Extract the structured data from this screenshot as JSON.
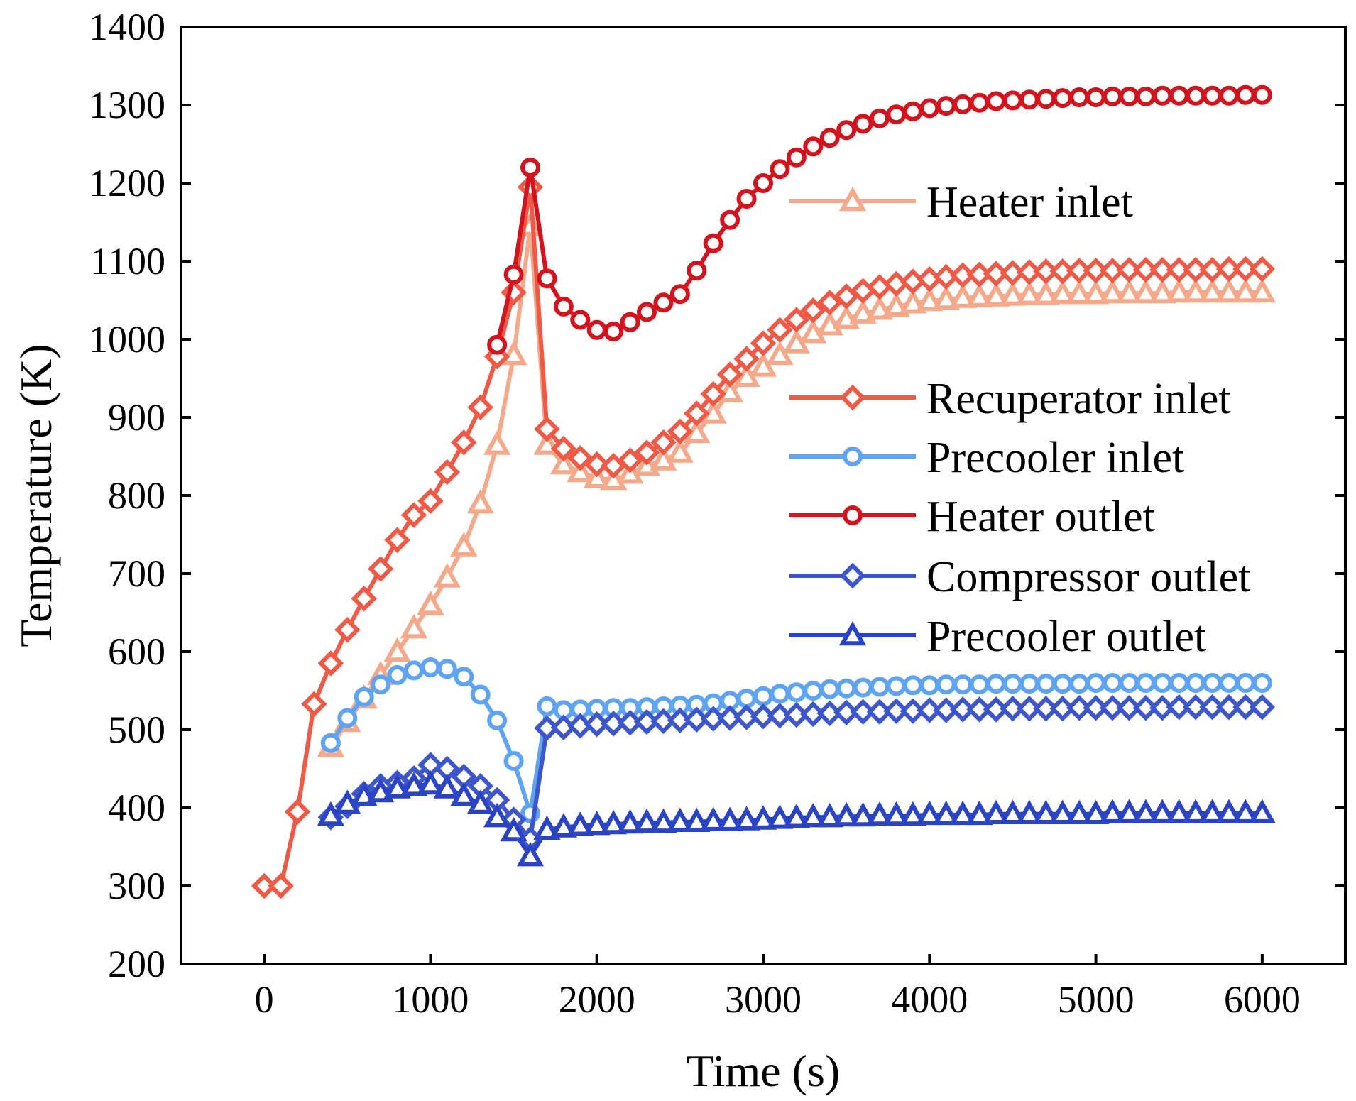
{
  "chart_data": {
    "type": "line",
    "title": "",
    "xlabel": "Time (s)",
    "ylabel": "Temperature (K)",
    "xlim": [
      -500,
      6500
    ],
    "ylim": [
      200,
      1400
    ],
    "xticks": [
      0,
      1000,
      2000,
      3000,
      4000,
      5000,
      6000
    ],
    "yticks": [
      200,
      300,
      400,
      500,
      600,
      700,
      800,
      900,
      1000,
      1100,
      1200,
      1300,
      1400
    ],
    "grid": false,
    "legend_position": "top-right",
    "series": [
      {
        "name": "Heater inlet",
        "color": "#f5a98b",
        "marker": "triangle",
        "x": [
          400,
          500,
          600,
          700,
          800,
          900,
          1000,
          1100,
          1200,
          1300,
          1400,
          1500,
          1600,
          1700,
          1800,
          1900,
          2000,
          2100,
          2200,
          2300,
          2400,
          2500,
          2600,
          2700,
          2800,
          2900,
          3000,
          3100,
          3200,
          3300,
          3400,
          3500,
          3600,
          3700,
          3800,
          3900,
          4000,
          4100,
          4200,
          4300,
          4400,
          4500,
          4600,
          4700,
          4800,
          4900,
          5000,
          5100,
          5200,
          5300,
          5400,
          5500,
          5600,
          5700,
          5800,
          5900,
          6000
        ],
        "y": [
          478,
          510,
          540,
          570,
          600,
          630,
          660,
          695,
          735,
          790,
          865,
          980,
          1145,
          865,
          840,
          830,
          822,
          820,
          828,
          838,
          845,
          855,
          880,
          905,
          932,
          952,
          965,
          980,
          995,
          1008,
          1018,
          1026,
          1033,
          1038,
          1042,
          1046,
          1049,
          1051,
          1053,
          1054,
          1055,
          1056,
          1057,
          1057,
          1058,
          1058,
          1058,
          1059,
          1059,
          1059,
          1059,
          1060,
          1060,
          1060,
          1060,
          1060,
          1060
        ]
      },
      {
        "name": "Recuperator inlet",
        "color": "#ef5a47",
        "marker": "diamond",
        "x": [
          0,
          100,
          200,
          300,
          400,
          500,
          600,
          700,
          800,
          900,
          1000,
          1100,
          1200,
          1300,
          1400,
          1500,
          1600,
          1700,
          1800,
          1900,
          2000,
          2100,
          2200,
          2300,
          2400,
          2500,
          2600,
          2700,
          2800,
          2900,
          3000,
          3100,
          3200,
          3300,
          3400,
          3500,
          3600,
          3700,
          3800,
          3900,
          4000,
          4100,
          4200,
          4300,
          4400,
          4500,
          4600,
          4700,
          4800,
          4900,
          5000,
          5100,
          5200,
          5300,
          5400,
          5500,
          5600,
          5700,
          5800,
          5900,
          6000
        ],
        "y": [
          300,
          300,
          395,
          533,
          585,
          628,
          668,
          706,
          743,
          775,
          793,
          830,
          868,
          913,
          978,
          1060,
          1195,
          885,
          860,
          848,
          840,
          838,
          845,
          855,
          868,
          882,
          905,
          930,
          955,
          975,
          995,
          1012,
          1025,
          1037,
          1047,
          1055,
          1062,
          1067,
          1071,
          1074,
          1077,
          1080,
          1082,
          1083,
          1084,
          1085,
          1086,
          1087,
          1087,
          1088,
          1088,
          1088,
          1089,
          1089,
          1089,
          1089,
          1089,
          1089,
          1090,
          1090,
          1090
        ]
      },
      {
        "name": "Precooler inlet",
        "color": "#5ea4f2",
        "marker": "circle",
        "x": [
          400,
          500,
          600,
          700,
          800,
          900,
          1000,
          1100,
          1200,
          1300,
          1400,
          1500,
          1600,
          1700,
          1800,
          1900,
          2000,
          2100,
          2200,
          2300,
          2400,
          2500,
          2600,
          2700,
          2800,
          2900,
          3000,
          3100,
          3200,
          3300,
          3400,
          3500,
          3600,
          3700,
          3800,
          3900,
          4000,
          4100,
          4200,
          4300,
          4400,
          4500,
          4600,
          4700,
          4800,
          4900,
          5000,
          5100,
          5200,
          5300,
          5400,
          5500,
          5600,
          5700,
          5800,
          5900,
          6000
        ],
        "y": [
          483,
          515,
          542,
          558,
          570,
          576,
          580,
          578,
          568,
          545,
          512,
          460,
          393,
          530,
          525,
          526,
          527,
          528,
          528,
          529,
          530,
          531,
          532,
          534,
          537,
          540,
          543,
          546,
          548,
          550,
          552,
          553,
          554,
          555,
          556,
          557,
          557,
          558,
          558,
          558,
          559,
          559,
          559,
          559,
          559,
          559,
          560,
          560,
          560,
          560,
          560,
          560,
          560,
          560,
          560,
          560,
          560
        ]
      },
      {
        "name": "Heater outlet",
        "color": "#d2141f",
        "marker": "circle",
        "x": [
          1400,
          1500,
          1600,
          1700,
          1800,
          1900,
          2000,
          2100,
          2200,
          2300,
          2400,
          2500,
          2600,
          2700,
          2800,
          2900,
          3000,
          3100,
          3200,
          3300,
          3400,
          3500,
          3600,
          3700,
          3800,
          3900,
          4000,
          4100,
          4200,
          4300,
          4400,
          4500,
          4600,
          4700,
          4800,
          4900,
          5000,
          5100,
          5200,
          5300,
          5400,
          5500,
          5600,
          5700,
          5800,
          5900,
          6000
        ],
        "y": [
          993,
          1083,
          1220,
          1078,
          1042,
          1025,
          1012,
          1010,
          1022,
          1035,
          1047,
          1058,
          1088,
          1123,
          1153,
          1180,
          1200,
          1218,
          1233,
          1247,
          1258,
          1268,
          1276,
          1283,
          1288,
          1292,
          1296,
          1299,
          1301,
          1303,
          1305,
          1306,
          1307,
          1308,
          1309,
          1310,
          1310,
          1311,
          1311,
          1311,
          1312,
          1312,
          1312,
          1312,
          1312,
          1313,
          1313
        ]
      },
      {
        "name": "Compressor outlet",
        "color": "#3d56cc",
        "marker": "diamond",
        "x": [
          400,
          500,
          600,
          700,
          800,
          900,
          1000,
          1100,
          1200,
          1300,
          1400,
          1500,
          1600,
          1700,
          1800,
          1900,
          2000,
          2100,
          2200,
          2300,
          2400,
          2500,
          2600,
          2700,
          2800,
          2900,
          3000,
          3100,
          3200,
          3300,
          3400,
          3500,
          3600,
          3700,
          3800,
          3900,
          4000,
          4100,
          4200,
          4300,
          4400,
          4500,
          4600,
          4700,
          4800,
          4900,
          5000,
          5100,
          5200,
          5300,
          5400,
          5500,
          5600,
          5700,
          5800,
          5900,
          6000
        ],
        "y": [
          388,
          402,
          418,
          428,
          432,
          438,
          455,
          450,
          440,
          428,
          410,
          385,
          360,
          502,
          503,
          505,
          507,
          508,
          509,
          510,
          511,
          512,
          513,
          514,
          515,
          516,
          517,
          518,
          519,
          520,
          521,
          522,
          523,
          523,
          524,
          524,
          525,
          525,
          526,
          526,
          526,
          527,
          527,
          527,
          527,
          528,
          528,
          528,
          528,
          528,
          528,
          529,
          529,
          529,
          529,
          529,
          529
        ]
      },
      {
        "name": "Precooler outlet",
        "color": "#2b44c4",
        "marker": "triangle",
        "x": [
          400,
          500,
          600,
          700,
          800,
          900,
          1000,
          1100,
          1200,
          1300,
          1400,
          1500,
          1600,
          1700,
          1800,
          1900,
          2000,
          2100,
          2200,
          2300,
          2400,
          2500,
          2600,
          2700,
          2800,
          2900,
          3000,
          3100,
          3200,
          3300,
          3400,
          3500,
          3600,
          3700,
          3800,
          3900,
          4000,
          4100,
          4200,
          4300,
          4400,
          4500,
          4600,
          4700,
          4800,
          4900,
          5000,
          5100,
          5200,
          5300,
          5400,
          5500,
          5600,
          5700,
          5800,
          5900,
          6000
        ],
        "y": [
          390,
          405,
          415,
          420,
          425,
          428,
          430,
          425,
          415,
          405,
          388,
          370,
          338,
          372,
          375,
          377,
          378,
          379,
          380,
          381,
          381,
          382,
          382,
          383,
          383,
          384,
          385,
          386,
          387,
          388,
          388,
          389,
          389,
          390,
          390,
          390,
          391,
          391,
          391,
          391,
          392,
          392,
          392,
          392,
          392,
          392,
          392,
          393,
          393,
          393,
          393,
          393,
          393,
          393,
          393,
          393,
          393
        ]
      }
    ]
  }
}
